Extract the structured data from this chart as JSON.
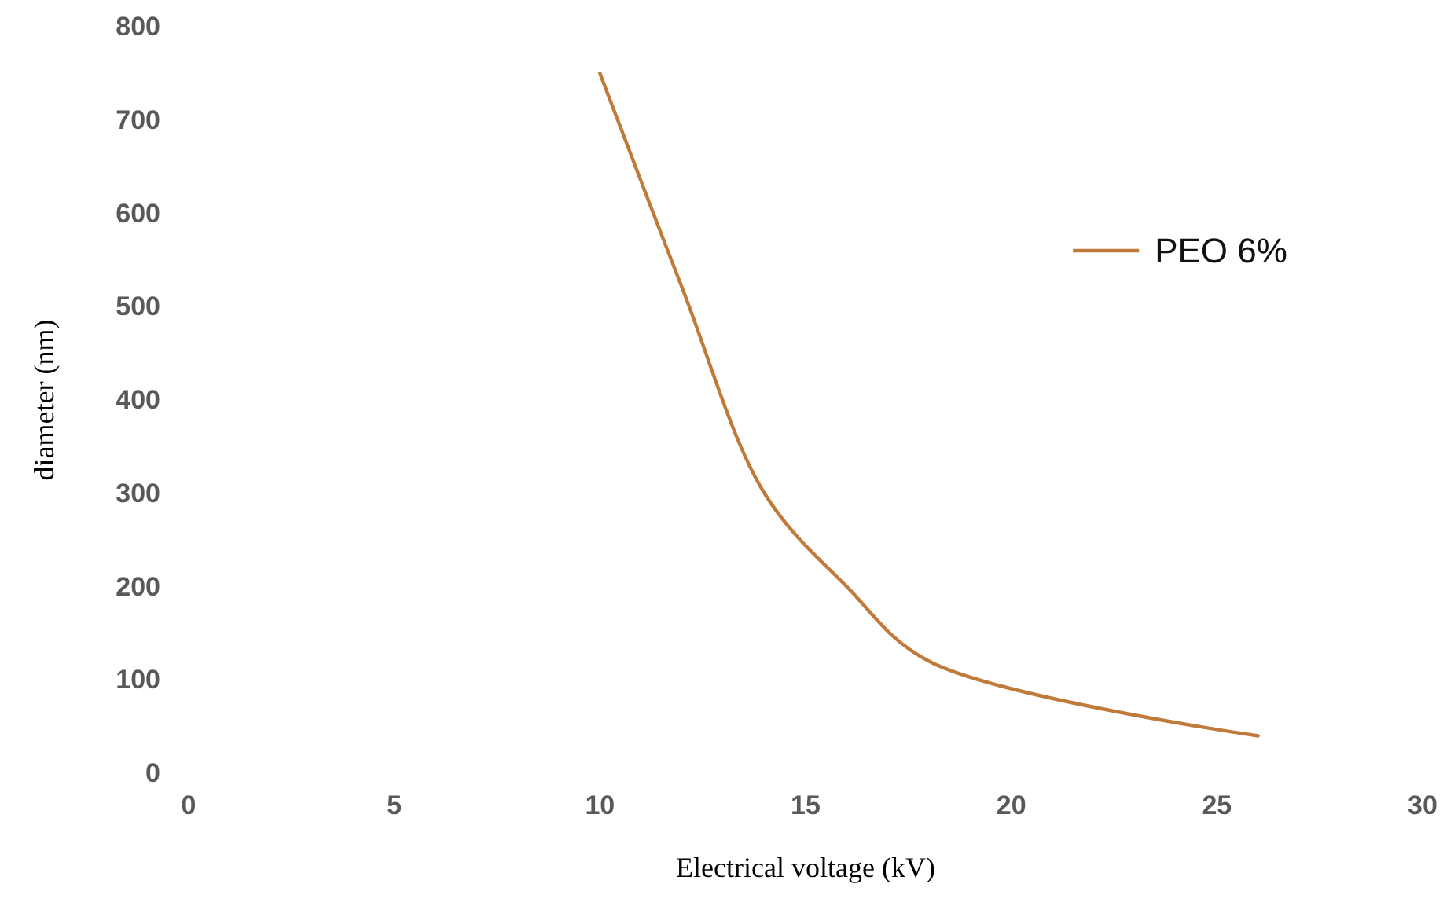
{
  "chart_data": {
    "type": "line",
    "xlabel": "Electrical voltage (kV)",
    "ylabel": "diameter (nm)",
    "x": [
      10,
      12,
      14,
      16,
      18,
      26
    ],
    "series": [
      {
        "name": "PEO 6%",
        "color": "#c07a3c",
        "values": [
          750,
          520,
          300,
          200,
          120,
          40
        ]
      }
    ],
    "xlim": [
      0,
      30
    ],
    "xticks": [
      0,
      5,
      10,
      15,
      20,
      25,
      30
    ],
    "ylim": [
      0,
      800
    ],
    "yticks": [
      0,
      100,
      200,
      300,
      400,
      500,
      600,
      700,
      800
    ],
    "grid": false,
    "legend": "right",
    "marker": "none",
    "line_style": "solid"
  }
}
